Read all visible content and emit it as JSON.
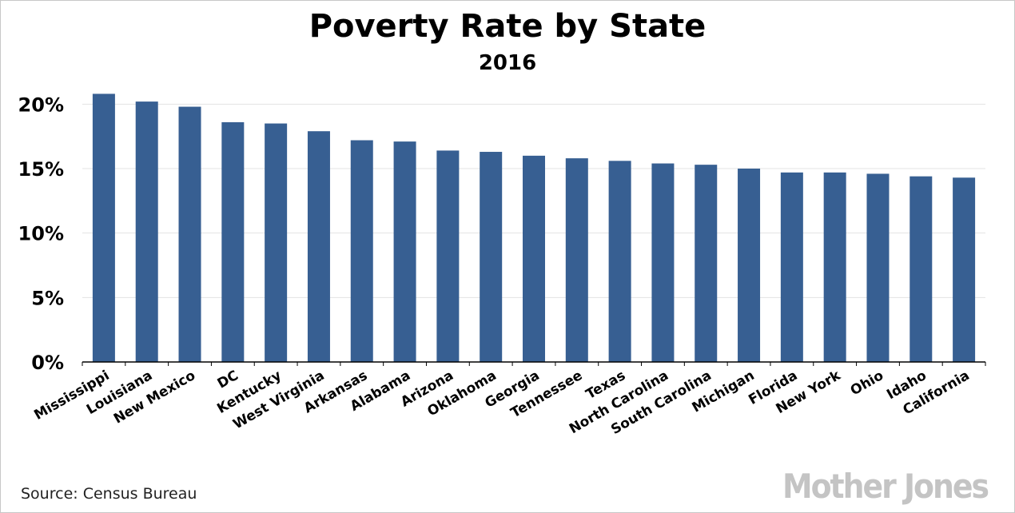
{
  "chart_data": {
    "type": "bar",
    "title": "Poverty Rate by State",
    "subtitle": "2016",
    "categories": [
      "Mississippi",
      "Louisiana",
      "New Mexico",
      "DC",
      "Kentucky",
      "West Virginia",
      "Arkansas",
      "Alabama",
      "Arizona",
      "Oklahoma",
      "Georgia",
      "Tennessee",
      "Texas",
      "North Carolina",
      "South Carolina",
      "Michigan",
      "Florida",
      "New York",
      "Ohio",
      "Idaho",
      "California"
    ],
    "values": [
      20.8,
      20.2,
      19.8,
      18.6,
      18.5,
      17.9,
      17.2,
      17.1,
      16.4,
      16.3,
      16.0,
      15.8,
      15.6,
      15.4,
      15.3,
      15.0,
      14.7,
      14.7,
      14.6,
      14.4,
      14.3
    ],
    "yticks": [
      "0%",
      "5%",
      "10%",
      "15%",
      "20%"
    ],
    "ylim": [
      0,
      22.5
    ],
    "xlabel": "",
    "ylabel": "",
    "bar_color": "#375f92",
    "grid": true
  },
  "source": "Source:  Census Bureau",
  "logo": "Mother Jones"
}
